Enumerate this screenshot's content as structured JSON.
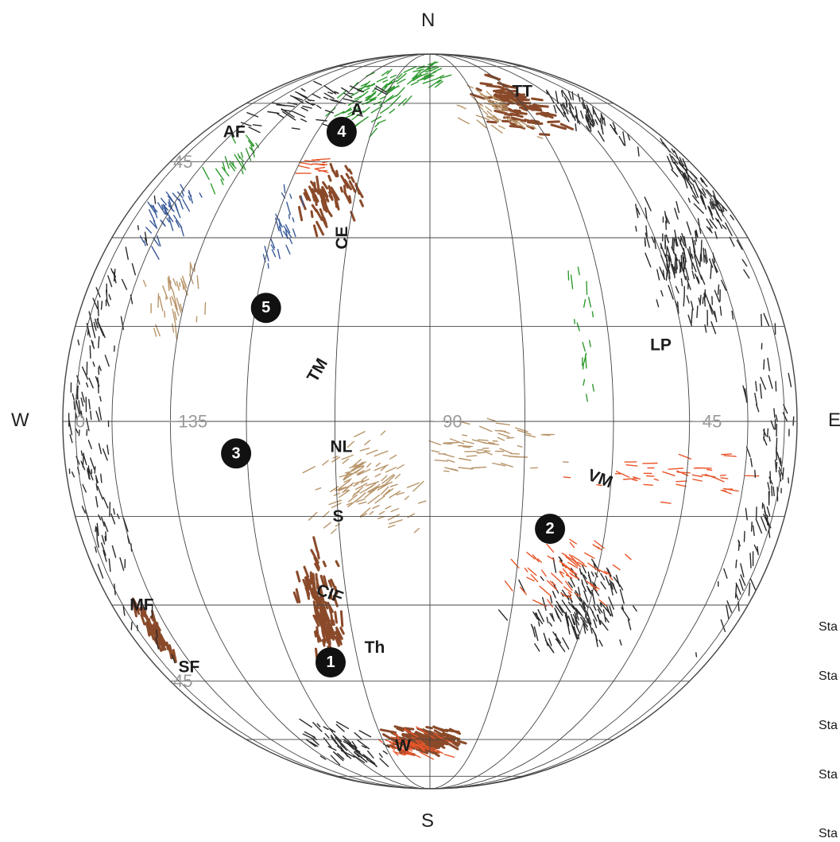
{
  "compass": {
    "north": "N",
    "south": "S",
    "west": "W",
    "east": "E"
  },
  "longitude_labels": [
    {
      "text": "0",
      "lon": -180,
      "lat": 0
    },
    {
      "text": "−135",
      "lon": -135,
      "lat": 0
    },
    {
      "text": "−90",
      "lon": -90,
      "lat": 0
    },
    {
      "text": "−45",
      "lon": -45,
      "lat": 0
    }
  ],
  "latitude_labels": [
    {
      "text": "45",
      "lon": -162,
      "lat": 45
    },
    {
      "text": "45",
      "lon": -162,
      "lat": -45
    }
  ],
  "region_labels": [
    {
      "text": "A",
      "lon": -112,
      "lat": 58
    },
    {
      "text": "AF",
      "lon": -150,
      "lat": 52
    },
    {
      "text": "TT",
      "lon": -55,
      "lat": 64
    },
    {
      "text": "CE",
      "lon": -106,
      "lat": 30,
      "rotate": -90
    },
    {
      "text": "TM",
      "lon": -108,
      "lat": 8,
      "rotate": -60
    },
    {
      "text": "LP",
      "lon": -50,
      "lat": 12
    },
    {
      "text": "NL",
      "lon": -104,
      "lat": -4
    },
    {
      "text": "VM",
      "lon": -62,
      "lat": -9,
      "rotate": 20
    },
    {
      "text": "S",
      "lon": -105,
      "lat": -15
    },
    {
      "text": "CIF",
      "lon": -108,
      "lat": -28,
      "rotate": 20
    },
    {
      "text": "Th",
      "lon": -101,
      "lat": -38
    },
    {
      "text": "MF",
      "lon": -155,
      "lat": -30
    },
    {
      "text": "SF",
      "lon": -152,
      "lat": -42
    },
    {
      "text": "W",
      "lon": -99,
      "lat": -62
    }
  ],
  "numbered_markers": [
    {
      "text": "1",
      "lon": -111,
      "lat": -41
    },
    {
      "text": "2",
      "lon": -70,
      "lat": -17
    },
    {
      "text": "3",
      "lon": -122,
      "lat": -5
    },
    {
      "text": "4",
      "lon": -113,
      "lat": 52
    },
    {
      "text": "5",
      "lon": -118,
      "lat": 18
    }
  ],
  "legend_items": [
    "Sta",
    "Sta",
    "Sta",
    "Sta",
    "Sta"
  ],
  "colors": {
    "graticule": "#444444",
    "marker_fill": "#111111",
    "marker_text": "#ffffff",
    "label_text": "#1c1c1c",
    "faint_label": "#9a9a9a",
    "green": "#2f9a2f",
    "brown": "#8a4a2a",
    "tan": "#b8956a",
    "orange": "#e8552a",
    "blue": "#3a5a9a",
    "dark": "#2a2a2a"
  },
  "geologic_units": [
    {
      "color": "green",
      "lon": -108,
      "lat": 62,
      "dlon": 18,
      "dlat": 14,
      "n": 70,
      "angle": -35
    },
    {
      "color": "green",
      "lon": -92,
      "lat": 72,
      "dlon": 10,
      "dlat": 8,
      "n": 30,
      "angle": -25
    },
    {
      "color": "brown",
      "lon": -62,
      "lat": 60,
      "dlon": 14,
      "dlat": 12,
      "n": 90,
      "angle": 10
    },
    {
      "color": "tan",
      "lon": -70,
      "lat": 58,
      "dlon": 16,
      "dlat": 10,
      "n": 40,
      "angle": 30
    },
    {
      "color": "dark",
      "lon": -40,
      "lat": 56,
      "dlon": 14,
      "dlat": 12,
      "n": 60,
      "angle": 70
    },
    {
      "color": "dark",
      "lon": -40,
      "lat": 25,
      "dlon": 14,
      "dlat": 14,
      "n": 140,
      "angle": 80
    },
    {
      "color": "dark",
      "lon": -18,
      "lat": 38,
      "dlon": 12,
      "dlat": 16,
      "n": 70,
      "angle": 60
    },
    {
      "color": "brown",
      "lon": -110,
      "lat": 38,
      "dlon": 8,
      "dlat": 8,
      "n": 60,
      "angle": 70
    },
    {
      "color": "orange",
      "lon": -116,
      "lat": 44,
      "dlon": 5,
      "dlat": 3,
      "n": 12,
      "angle": 0
    },
    {
      "color": "blue",
      "lon": -150,
      "lat": 34,
      "dlon": 12,
      "dlat": 10,
      "n": 45,
      "angle": 60
    },
    {
      "color": "blue",
      "lon": -118,
      "lat": 32,
      "dlon": 6,
      "dlat": 10,
      "n": 25,
      "angle": 70
    },
    {
      "color": "tan",
      "lon": -138,
      "lat": 20,
      "dlon": 10,
      "dlat": 8,
      "n": 40,
      "angle": 80
    },
    {
      "color": "tan",
      "lon": -100,
      "lat": -10,
      "dlon": 12,
      "dlat": 10,
      "n": 110,
      "angle": -30
    },
    {
      "color": "tan",
      "lon": -80,
      "lat": -4,
      "dlon": 14,
      "dlat": 6,
      "n": 60,
      "angle": 10
    },
    {
      "color": "orange",
      "lon": -48,
      "lat": -8,
      "dlon": 28,
      "dlat": 6,
      "n": 40,
      "angle": 10
    },
    {
      "color": "brown",
      "lon": -110,
      "lat": -32,
      "dlon": 5,
      "dlat": 14,
      "n": 110,
      "angle": 75
    },
    {
      "color": "dark",
      "lon": -62,
      "lat": -30,
      "dlon": 16,
      "dlat": 12,
      "n": 140,
      "angle": 65
    },
    {
      "color": "orange",
      "lon": -66,
      "lat": -24,
      "dlon": 14,
      "dlat": 8,
      "n": 60,
      "angle": 40
    },
    {
      "color": "brown",
      "lon": -92,
      "lat": -60,
      "dlon": 18,
      "dlat": 6,
      "n": 110,
      "angle": 20
    },
    {
      "color": "orange",
      "lon": -95,
      "lat": -62,
      "dlon": 14,
      "dlat": 6,
      "n": 50,
      "angle": 30
    },
    {
      "color": "brown",
      "lon": -156,
      "lat": -35,
      "dlon": 6,
      "dlat": 8,
      "n": 50,
      "angle": 70
    },
    {
      "color": "dark",
      "lon": -160,
      "lat": 0,
      "dlon": 14,
      "dlat": 50,
      "n": 140,
      "angle": 80
    },
    {
      "color": "dark",
      "lon": -20,
      "lat": -10,
      "dlon": 14,
      "dlat": 40,
      "n": 90,
      "angle": 80
    },
    {
      "color": "dark",
      "lon": -120,
      "lat": -62,
      "dlon": 20,
      "dlat": 10,
      "n": 60,
      "angle": 40
    },
    {
      "color": "dark",
      "lon": -130,
      "lat": 60,
      "dlon": 30,
      "dlat": 10,
      "n": 50,
      "angle": 20
    },
    {
      "color": "green",
      "lon": -138,
      "lat": 45,
      "dlon": 10,
      "dlat": 8,
      "n": 25,
      "angle": 60
    },
    {
      "color": "green",
      "lon": -64,
      "lat": 16,
      "dlon": 3,
      "dlat": 18,
      "n": 18,
      "angle": 88
    }
  ]
}
